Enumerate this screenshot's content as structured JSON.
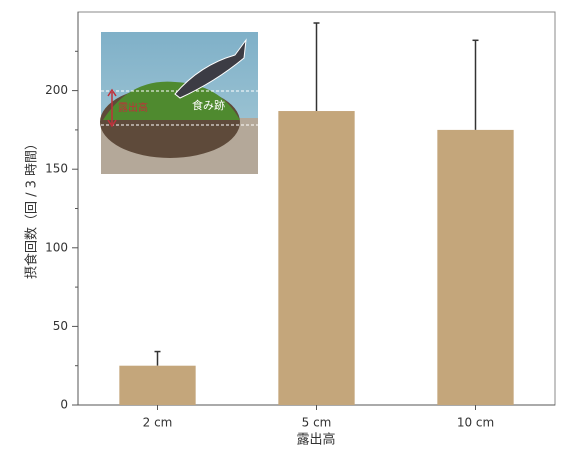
{
  "chart_data": {
    "type": "bar",
    "categories": [
      "2 cm",
      "5 cm",
      "10 cm"
    ],
    "values": [
      25,
      187,
      175
    ],
    "errors": [
      9,
      56,
      57
    ],
    "color": "#c4a67b",
    "error_color": "#333333",
    "ylim": [
      0,
      250
    ],
    "yticks": [
      0,
      50,
      100,
      150,
      200
    ],
    "yminorticks": [
      25,
      75,
      125,
      175,
      225
    ],
    "ylabel": "摂食回数（回 / 3 時間）",
    "xlabel": "露出高",
    "annotations": [
      "露出高",
      "食み跡"
    ]
  }
}
